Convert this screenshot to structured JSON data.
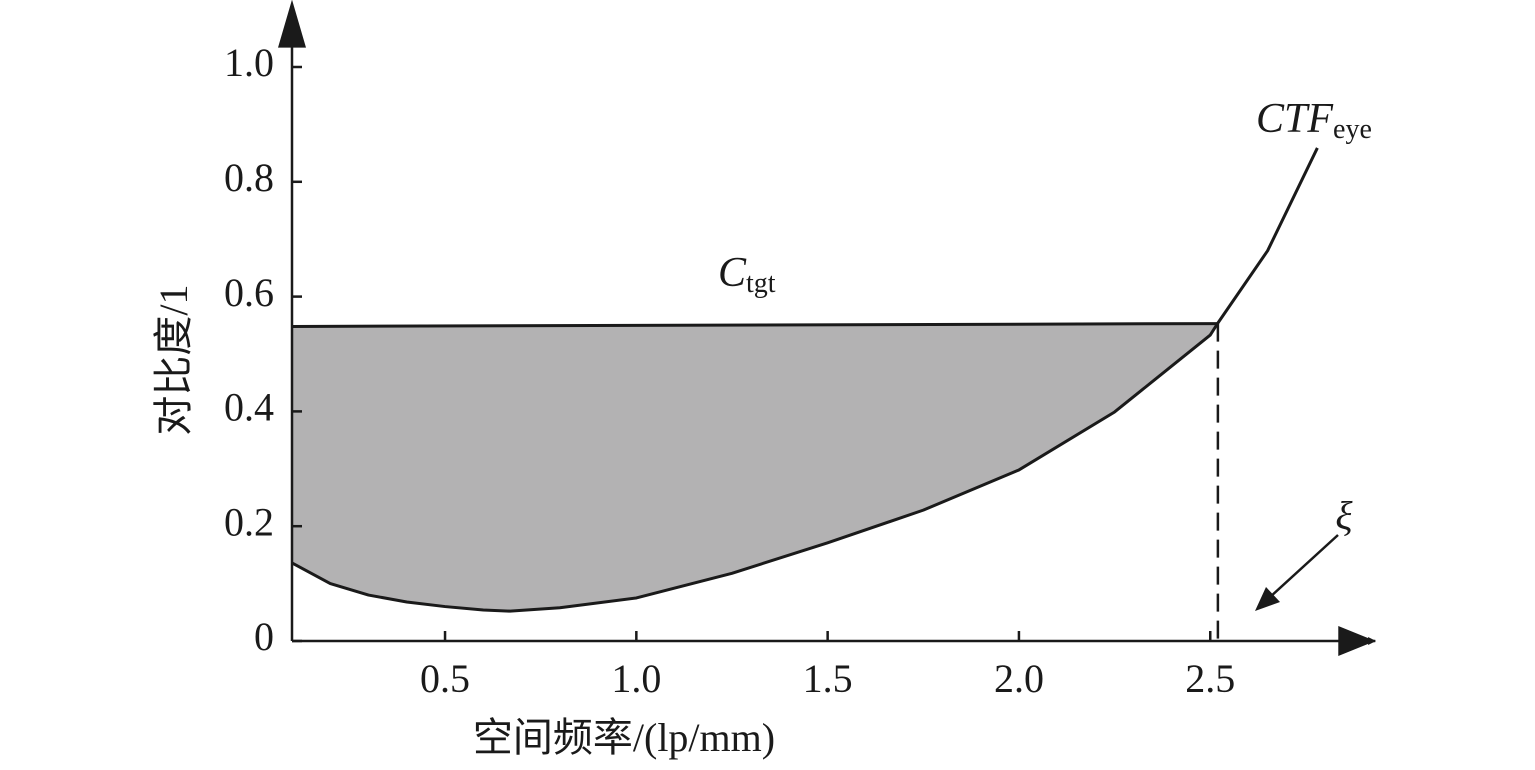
{
  "chart_data": {
    "type": "line",
    "xlabel": "空间频率/(lp/mm)",
    "ylabel": "对比度/1",
    "xlim": [
      0.1,
      2.9
    ],
    "ylim": [
      0,
      1.1
    ],
    "xticks": [
      0.5,
      {
        "value": 1,
        "label": "1.0"
      },
      1.5,
      {
        "value": 2,
        "label": "2.0"
      },
      2.5
    ],
    "yticks": [
      0,
      0.2,
      0.4,
      0.6,
      0.8,
      {
        "value": 1,
        "label": "1.0"
      }
    ],
    "series": [
      {
        "name": "CTF",
        "subscript": "eye",
        "color": "#1a1a1a",
        "x": [
          0.1,
          0.2,
          0.3,
          0.4,
          0.5,
          0.6,
          0.67,
          0.8,
          1.0,
          1.25,
          1.5,
          1.75,
          2.0,
          2.25,
          2.5,
          2.52,
          2.65,
          2.78
        ],
        "values": [
          0.136,
          0.1,
          0.08,
          0.068,
          0.06,
          0.054,
          0.052,
          0.058,
          0.075,
          0.118,
          0.171,
          0.228,
          0.298,
          0.399,
          0.533,
          0.554,
          0.68,
          0.859
        ]
      },
      {
        "name": "C",
        "subscript": "tgt",
        "color": "#1a1a1a",
        "x": [
          0.1,
          2.52
        ],
        "values": [
          0.548,
          0.553
        ]
      }
    ],
    "fill_color": "#b3b2b3",
    "annotation": "ξ"
  }
}
